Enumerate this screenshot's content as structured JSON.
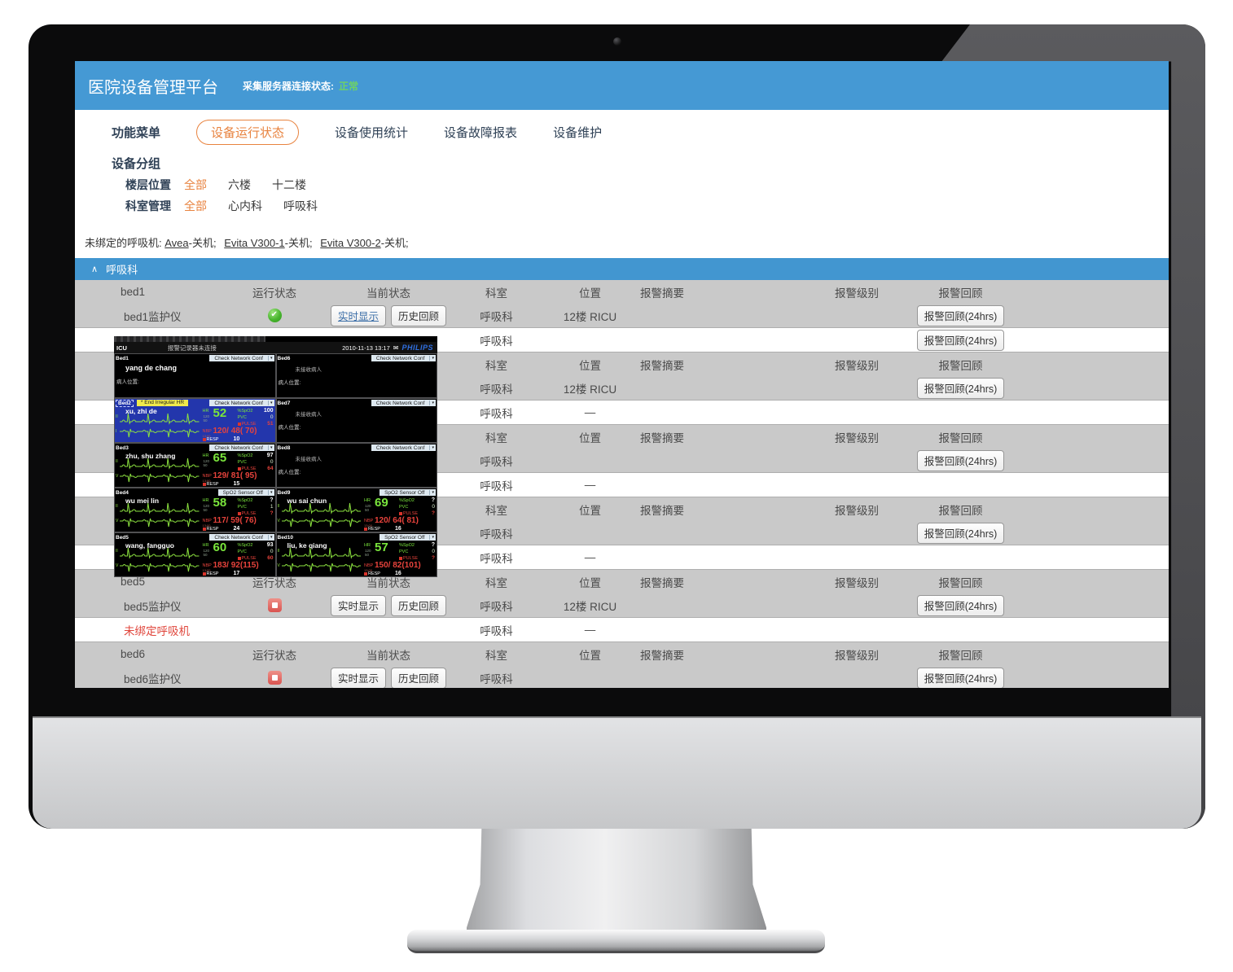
{
  "app": {
    "title": "医院设备管理平台",
    "server_status_label": "采集服务器连接状态:",
    "server_status_value": "正常",
    "colors": {
      "header_blue": "#4599d4",
      "accent_orange": "#e8833f",
      "status_green": "#6fd364",
      "alert_red": "#e0463c"
    }
  },
  "nav": {
    "menu_label": "功能菜单",
    "tabs": [
      {
        "label": "设备运行状态",
        "active": true
      },
      {
        "label": "设备使用统计",
        "active": false
      },
      {
        "label": "设备故障报表",
        "active": false
      },
      {
        "label": "设备维护",
        "active": false
      }
    ]
  },
  "groups": {
    "title": "设备分组",
    "filters": [
      {
        "label": "楼层位置",
        "options": [
          {
            "label": "全部",
            "active": true
          },
          {
            "label": "六楼",
            "active": false
          },
          {
            "label": "十二楼",
            "active": false
          }
        ]
      },
      {
        "label": "科室管理",
        "options": [
          {
            "label": "全部",
            "active": true
          },
          {
            "label": "心内科",
            "active": false
          },
          {
            "label": "呼吸科",
            "active": false
          }
        ]
      }
    ]
  },
  "unbound": {
    "prefix": "未绑定的呼吸机:",
    "items": [
      {
        "name": "Avea",
        "suffix": "-关机;"
      },
      {
        "name": "Evita V300-1",
        "suffix": "-关机;"
      },
      {
        "name": "Evita V300-2",
        "suffix": "-关机;"
      }
    ]
  },
  "section": {
    "title": "呼吸科",
    "collapse_glyph": "∧"
  },
  "table": {
    "col_headers": {
      "run": "运行状态",
      "current": "当前状态",
      "dept": "科室",
      "loc": "位置",
      "alarm_summary": "报警摘要",
      "alarm_level": "报警级别",
      "alarm_review": "报警回顾"
    },
    "buttons": {
      "realtime": "实时显示",
      "history": "历史回顾",
      "review": "报警回顾(24hrs)"
    },
    "groups": [
      {
        "bed": "bed1",
        "device": {
          "label": "bed1监护仪",
          "status": "ok",
          "dept": "呼吸科",
          "loc": "12楼 RICU",
          "controls": true,
          "realtime_active": true,
          "review": true
        },
        "vent": {
          "label": "",
          "red": false,
          "dept": "呼吸科",
          "loc": "",
          "review": true
        }
      },
      {
        "bed": "",
        "device": {
          "label": "",
          "status": "",
          "dept": "呼吸科",
          "loc": "12楼 RICU",
          "controls": false,
          "realtime_active": false,
          "review": true
        },
        "vent": {
          "label": "",
          "red": false,
          "dept": "呼吸科",
          "loc": "—",
          "review": false
        }
      },
      {
        "bed": "",
        "device": {
          "label": "",
          "status": "",
          "dept": "呼吸科",
          "loc": "",
          "controls": false,
          "realtime_active": false,
          "review": true
        },
        "vent": {
          "label": "",
          "red": false,
          "dept": "呼吸科",
          "loc": "—",
          "review": false
        }
      },
      {
        "bed": "",
        "device": {
          "label": "",
          "status": "",
          "dept": "呼吸科",
          "loc": "",
          "controls": false,
          "realtime_active": false,
          "review": true
        },
        "vent": {
          "label": "",
          "red": false,
          "dept": "呼吸科",
          "loc": "—",
          "review": false
        }
      },
      {
        "bed": "bed5",
        "device": {
          "label": "bed5监护仪",
          "status": "stop",
          "dept": "呼吸科",
          "loc": "12楼 RICU",
          "controls": true,
          "realtime_active": false,
          "review": true
        },
        "vent": {
          "label": "未绑定呼吸机",
          "red": true,
          "dept": "呼吸科",
          "loc": "—",
          "review": false
        }
      },
      {
        "bed": "bed6",
        "device": {
          "label": "bed6监护仪",
          "status": "stop",
          "dept": "呼吸科",
          "loc": "",
          "controls": true,
          "realtime_active": false,
          "review": true
        },
        "vent": null
      }
    ]
  },
  "monitor": {
    "status_bar": {
      "unit": "ICU",
      "alarm_notice": "报警记录器未连接",
      "datetime": "2010-11-13 13:17",
      "brand": "PHILIPS"
    },
    "dropdown_arrow": "▾",
    "labels": {
      "hr": "HR",
      "spo2": "%SpO2",
      "pvc": "PVC",
      "pulse": "PULSE",
      "nbp": "NBP",
      "resp": "RESP",
      "hr_hi": "120",
      "hr_lo": "50",
      "nbp_time": "13:00"
    },
    "beds": [
      {
        "id": "Bed1",
        "name": "yang de chang",
        "location_label": "病人位置:",
        "dropdown": "Check Network Conf"
      },
      {
        "id": "Bed2",
        "name": "xu, zhi de",
        "selected": true,
        "alarm": "* End Irregular HR",
        "dropdown": "Check Network Conf",
        "hr": "52",
        "spo2": "100",
        "pvc": "0",
        "pulse": "51",
        "nbp": "120/ 48( 70)",
        "resp": "10",
        "leads": [
          "II",
          "I"
        ]
      },
      {
        "id": "Bed3",
        "name": "zhu, shu zhang",
        "dropdown": "Check Network Conf",
        "hr": "65",
        "spo2": "97",
        "pvc": "0",
        "pulse": "64",
        "nbp": "129/ 81( 95)",
        "resp": "15",
        "leads": [
          "II",
          "V"
        ]
      },
      {
        "id": "Bed4",
        "name": "wu mei lin",
        "dropdown": "SpO2  Sensor Off",
        "hr": "58",
        "spo2": "?",
        "pvc": "1",
        "pulse": "?",
        "nbp": "117/ 59( 76)",
        "resp": "24",
        "leads": [
          "II",
          "V"
        ]
      },
      {
        "id": "Bed5",
        "name": "wang, fangguo",
        "dropdown": "Check Network Conf",
        "hr": "60",
        "spo2": "93",
        "pvc": "0",
        "pulse": "60",
        "nbp": "183/ 92(115)",
        "resp": "17",
        "leads": [
          "II",
          "V"
        ]
      },
      {
        "id": "Bed6",
        "none_text": "未接收病人",
        "location_label": "病人位置:",
        "dropdown": "Check Network Conf"
      },
      {
        "id": "Bed7",
        "none_text": "未接收病人",
        "location_label": "病人位置:",
        "dropdown": "Check Network Conf"
      },
      {
        "id": "Bed8",
        "none_text": "未接收病人",
        "location_label": "病人位置:",
        "dropdown": "Check Network Conf"
      },
      {
        "id": "Bed9",
        "name": "wu sai chun",
        "dropdown": "SpO2  Sensor Off",
        "hr": "69",
        "spo2": "?",
        "pvc": "0",
        "pulse": "?",
        "nbp": "120/ 64( 81)",
        "resp": "16",
        "leads": [
          "II",
          "V"
        ]
      },
      {
        "id": "Bed10",
        "name": "liu, ke qiang",
        "dropdown": "SpO2  Sensor Off",
        "hr": "57",
        "spo2": "?",
        "pvc": "0",
        "pulse": "?",
        "nbp": "150/ 82(101)",
        "resp": "16",
        "leads": [
          "II",
          "V"
        ]
      }
    ]
  }
}
